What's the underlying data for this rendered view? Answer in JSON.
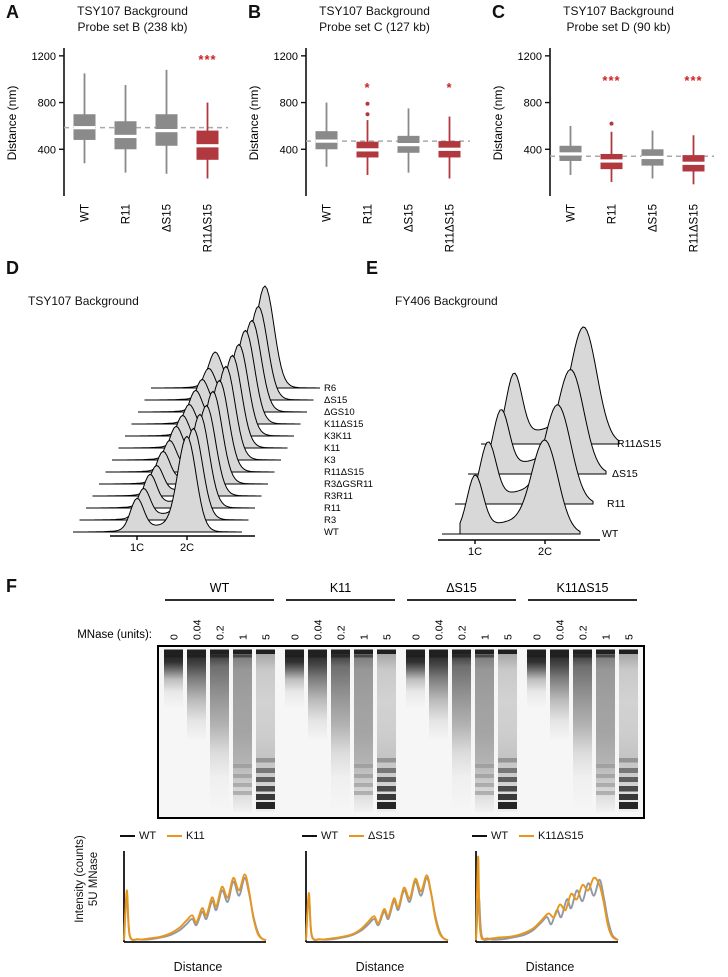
{
  "colors": {
    "box_gray": "#8a8a8a",
    "box_red": "#b0383e",
    "star_red": "#cc2222",
    "dashed": "#a9a9a9",
    "ridge_fill": "#d8d8d8",
    "gel_bg": "#f6f6f6",
    "band": "#141414",
    "wt_curve": "#8f98a5",
    "wt_legend": "#111111",
    "mutant_orange": "#e8951c",
    "axis": "#111111"
  },
  "labels": {
    "A": "A",
    "B": "B",
    "C": "C",
    "D": "D",
    "E": "E",
    "F": "F"
  },
  "chart_data": {
    "boxplots": [
      {
        "type": "box",
        "panel": "A",
        "title1": "TSY107 Background",
        "title2": "Probe set B (238 kb)",
        "ylabel": "Distance (nm)",
        "ylim": [
          0,
          1250
        ],
        "yticks": [
          400,
          800,
          1200
        ],
        "dashed_line": 585,
        "categories": [
          "WT",
          "R11",
          "ΔS15",
          "R11ΔS15"
        ],
        "boxes": [
          {
            "low": 280,
            "q1": 480,
            "median": 585,
            "q3": 700,
            "high": 1050,
            "color": "gray",
            "outliers": []
          },
          {
            "low": 200,
            "q1": 400,
            "median": 510,
            "q3": 640,
            "high": 950,
            "color": "gray",
            "outliers": []
          },
          {
            "low": 190,
            "q1": 430,
            "median": 560,
            "q3": 700,
            "high": 1080,
            "color": "gray",
            "outliers": []
          },
          {
            "low": 150,
            "q1": 310,
            "median": 430,
            "q3": 560,
            "high": 800,
            "color": "red",
            "outliers": []
          }
        ],
        "significance": [
          {
            "category_index": 3,
            "label": "***",
            "y": 1130
          }
        ]
      },
      {
        "type": "box",
        "panel": "B",
        "title1": "TSY107 Background",
        "title2": "Probe set C (127 kb)",
        "ylabel": "Distance (nm)",
        "ylim": [
          0,
          1250
        ],
        "yticks": [
          400,
          800,
          1200
        ],
        "dashed_line": 470,
        "categories": [
          "WT",
          "R11",
          "ΔS15",
          "R11ΔS15"
        ],
        "boxes": [
          {
            "low": 250,
            "q1": 400,
            "median": 470,
            "q3": 555,
            "high": 800,
            "color": "gray",
            "outliers": []
          },
          {
            "low": 180,
            "q1": 330,
            "median": 395,
            "q3": 465,
            "high": 650,
            "color": "red",
            "outliers": [
              700,
              790
            ]
          },
          {
            "low": 200,
            "q1": 370,
            "median": 440,
            "q3": 515,
            "high": 750,
            "color": "gray",
            "outliers": []
          },
          {
            "low": 150,
            "q1": 330,
            "median": 400,
            "q3": 470,
            "high": 680,
            "color": "red",
            "outliers": []
          }
        ],
        "significance": [
          {
            "category_index": 1,
            "label": "*",
            "y": 890
          },
          {
            "category_index": 3,
            "label": "*",
            "y": 890
          }
        ]
      },
      {
        "type": "box",
        "panel": "C",
        "title1": "TSY107 Background",
        "title2": "Probe set D (90 kb)",
        "ylabel": "Distance (nm)",
        "ylim": [
          0,
          1250
        ],
        "yticks": [
          400,
          800,
          1200
        ],
        "dashed_line": 340,
        "categories": [
          "WT",
          "R11",
          "ΔS15",
          "R11ΔS15"
        ],
        "boxes": [
          {
            "low": 180,
            "q1": 300,
            "median": 360,
            "q3": 430,
            "high": 600,
            "color": "gray",
            "outliers": []
          },
          {
            "low": 120,
            "q1": 230,
            "median": 300,
            "q3": 360,
            "high": 550,
            "color": "red",
            "outliers": [
              620
            ]
          },
          {
            "low": 150,
            "q1": 260,
            "median": 330,
            "q3": 400,
            "high": 560,
            "color": "gray",
            "outliers": []
          },
          {
            "low": 100,
            "q1": 210,
            "median": 280,
            "q3": 350,
            "high": 520,
            "color": "red",
            "outliers": []
          }
        ],
        "significance": [
          {
            "category_index": 1,
            "label": "***",
            "y": 950
          },
          {
            "category_index": 3,
            "label": "***",
            "y": 950
          }
        ]
      }
    ],
    "flow_ridges": [
      {
        "panel": "D",
        "title": "TSY107 Background",
        "xticks": [
          "1C",
          "2C"
        ],
        "series_bottom_to_top": [
          {
            "label": "WT",
            "peak_1C": 30,
            "peak_2C": 92
          },
          {
            "label": "R3",
            "peak_1C": 28,
            "peak_2C": 88
          },
          {
            "label": "R11",
            "peak_1C": 30,
            "peak_2C": 90
          },
          {
            "label": "R3R11",
            "peak_1C": 27,
            "peak_2C": 87
          },
          {
            "label": "R3ΔGSR11",
            "peak_1C": 29,
            "peak_2C": 89
          },
          {
            "label": "R11ΔS15",
            "peak_1C": 28,
            "peak_2C": 88
          },
          {
            "label": "K3",
            "peak_1C": 30,
            "peak_2C": 90
          },
          {
            "label": "K11",
            "peak_1C": 29,
            "peak_2C": 89
          },
          {
            "label": "K3K11",
            "peak_1C": 28,
            "peak_2C": 88
          },
          {
            "label": "K11ΔS15",
            "peak_1C": 30,
            "peak_2C": 90
          },
          {
            "label": "ΔGS10",
            "peak_1C": 29,
            "peak_2C": 88
          },
          {
            "label": "ΔS15",
            "peak_1C": 28,
            "peak_2C": 90
          },
          {
            "label": "R6",
            "peak_1C": 32,
            "peak_2C": 98
          }
        ]
      },
      {
        "panel": "E",
        "title": "FY406 Background",
        "xticks": [
          "1C",
          "2C"
        ],
        "series_bottom_to_top": [
          {
            "label": "WT",
            "peak_1C": 55,
            "peak_2C": 90
          },
          {
            "label": "R11",
            "peak_1C": 58,
            "peak_2C": 95
          },
          {
            "label": "ΔS15",
            "peak_1C": 60,
            "peak_2C": 100
          },
          {
            "label": "R11ΔS15",
            "peak_1C": 66,
            "peak_2C": 112
          }
        ]
      }
    ],
    "gel": {
      "panel": "F",
      "mnase_label": "MNase (units):",
      "groups": [
        {
          "name": "WT",
          "lanes": [
            "0",
            "0.04",
            "0.2",
            "1",
            "5"
          ]
        },
        {
          "name": "K11",
          "lanes": [
            "0",
            "0.04",
            "0.2",
            "1",
            "5"
          ]
        },
        {
          "name": "ΔS15",
          "lanes": [
            "0",
            "0.04",
            "0.2",
            "1",
            "5"
          ]
        },
        {
          "name": "K11ΔS15",
          "lanes": [
            "0",
            "0.04",
            "0.2",
            "1",
            "5"
          ]
        }
      ]
    },
    "intensity_profiles": {
      "ylabel_line1": "Intensity (counts)",
      "ylabel_line2": "5U MNase",
      "xlabel": "Distance",
      "plots": [
        {
          "legend": [
            "WT",
            "K11"
          ],
          "wt_points": [
            [
              0,
              2
            ],
            [
              2,
              52
            ],
            [
              4,
              7
            ],
            [
              10,
              3
            ],
            [
              18,
              3
            ],
            [
              26,
              5
            ],
            [
              33,
              8
            ],
            [
              39,
              13
            ],
            [
              44,
              20
            ],
            [
              48,
              26
            ],
            [
              51,
              19
            ],
            [
              55,
              34
            ],
            [
              58,
              26
            ],
            [
              62,
              46
            ],
            [
              65,
              36
            ],
            [
              69,
              58
            ],
            [
              73,
              45
            ],
            [
              77,
              68
            ],
            [
              81,
              52
            ],
            [
              85,
              72
            ],
            [
              88,
              55
            ],
            [
              91,
              30
            ],
            [
              94,
              12
            ],
            [
              97,
              4
            ],
            [
              100,
              2
            ]
          ],
          "mutant_points": [
            [
              0,
              2
            ],
            [
              2,
              58
            ],
            [
              4,
              8
            ],
            [
              10,
              3
            ],
            [
              18,
              4
            ],
            [
              26,
              6
            ],
            [
              33,
              10
            ],
            [
              39,
              16
            ],
            [
              44,
              24
            ],
            [
              48,
              30
            ],
            [
              51,
              22
            ],
            [
              55,
              38
            ],
            [
              58,
              30
            ],
            [
              62,
              50
            ],
            [
              65,
              40
            ],
            [
              69,
              62
            ],
            [
              73,
              50
            ],
            [
              77,
              72
            ],
            [
              81,
              58
            ],
            [
              85,
              76
            ],
            [
              88,
              58
            ],
            [
              91,
              28
            ],
            [
              94,
              10
            ],
            [
              97,
              4
            ],
            [
              100,
              2
            ]
          ]
        },
        {
          "legend": [
            "WT",
            "ΔS15"
          ],
          "wt_points": [
            [
              0,
              2
            ],
            [
              2,
              52
            ],
            [
              4,
              7
            ],
            [
              10,
              3
            ],
            [
              18,
              3
            ],
            [
              26,
              5
            ],
            [
              33,
              8
            ],
            [
              39,
              13
            ],
            [
              44,
              20
            ],
            [
              48,
              26
            ],
            [
              51,
              19
            ],
            [
              55,
              34
            ],
            [
              58,
              26
            ],
            [
              62,
              46
            ],
            [
              65,
              36
            ],
            [
              69,
              58
            ],
            [
              73,
              45
            ],
            [
              77,
              68
            ],
            [
              81,
              52
            ],
            [
              85,
              72
            ],
            [
              88,
              55
            ],
            [
              91,
              30
            ],
            [
              94,
              12
            ],
            [
              97,
              4
            ],
            [
              100,
              2
            ]
          ],
          "mutant_points": [
            [
              0,
              2
            ],
            [
              2,
              55
            ],
            [
              4,
              8
            ],
            [
              10,
              3
            ],
            [
              18,
              4
            ],
            [
              26,
              6
            ],
            [
              33,
              9
            ],
            [
              39,
              15
            ],
            [
              44,
              23
            ],
            [
              48,
              29
            ],
            [
              51,
              21
            ],
            [
              55,
              37
            ],
            [
              58,
              29
            ],
            [
              62,
              49
            ],
            [
              65,
              39
            ],
            [
              69,
              61
            ],
            [
              73,
              49
            ],
            [
              77,
              71
            ],
            [
              81,
              57
            ],
            [
              85,
              75
            ],
            [
              88,
              56
            ],
            [
              91,
              27
            ],
            [
              94,
              10
            ],
            [
              97,
              4
            ],
            [
              100,
              2
            ]
          ]
        },
        {
          "legend": [
            "WT",
            "K11ΔS15"
          ],
          "wt_points": [
            [
              0,
              2
            ],
            [
              2,
              50
            ],
            [
              4,
              7
            ],
            [
              10,
              3
            ],
            [
              18,
              3
            ],
            [
              26,
              5
            ],
            [
              34,
              8
            ],
            [
              40,
              13
            ],
            [
              46,
              22
            ],
            [
              50,
              28
            ],
            [
              53,
              20
            ],
            [
              57,
              36
            ],
            [
              60,
              28
            ],
            [
              64,
              48
            ],
            [
              67,
              38
            ],
            [
              71,
              58
            ],
            [
              75,
              46
            ],
            [
              79,
              66
            ],
            [
              83,
              52
            ],
            [
              87,
              70
            ],
            [
              90,
              50
            ],
            [
              93,
              24
            ],
            [
              96,
              8
            ],
            [
              100,
              2
            ]
          ],
          "mutant_points": [
            [
              0,
              2
            ],
            [
              1.5,
              96
            ],
            [
              3,
              12
            ],
            [
              8,
              4
            ],
            [
              16,
              5
            ],
            [
              24,
              6
            ],
            [
              32,
              9
            ],
            [
              40,
              15
            ],
            [
              46,
              24
            ],
            [
              51,
              32
            ],
            [
              55,
              28
            ],
            [
              59,
              42
            ],
            [
              63,
              36
            ],
            [
              67,
              54
            ],
            [
              71,
              48
            ],
            [
              75,
              64
            ],
            [
              79,
              58
            ],
            [
              83,
              72
            ],
            [
              87,
              64
            ],
            [
              90,
              44
            ],
            [
              93,
              18
            ],
            [
              96,
              6
            ],
            [
              100,
              2
            ]
          ]
        }
      ]
    }
  }
}
